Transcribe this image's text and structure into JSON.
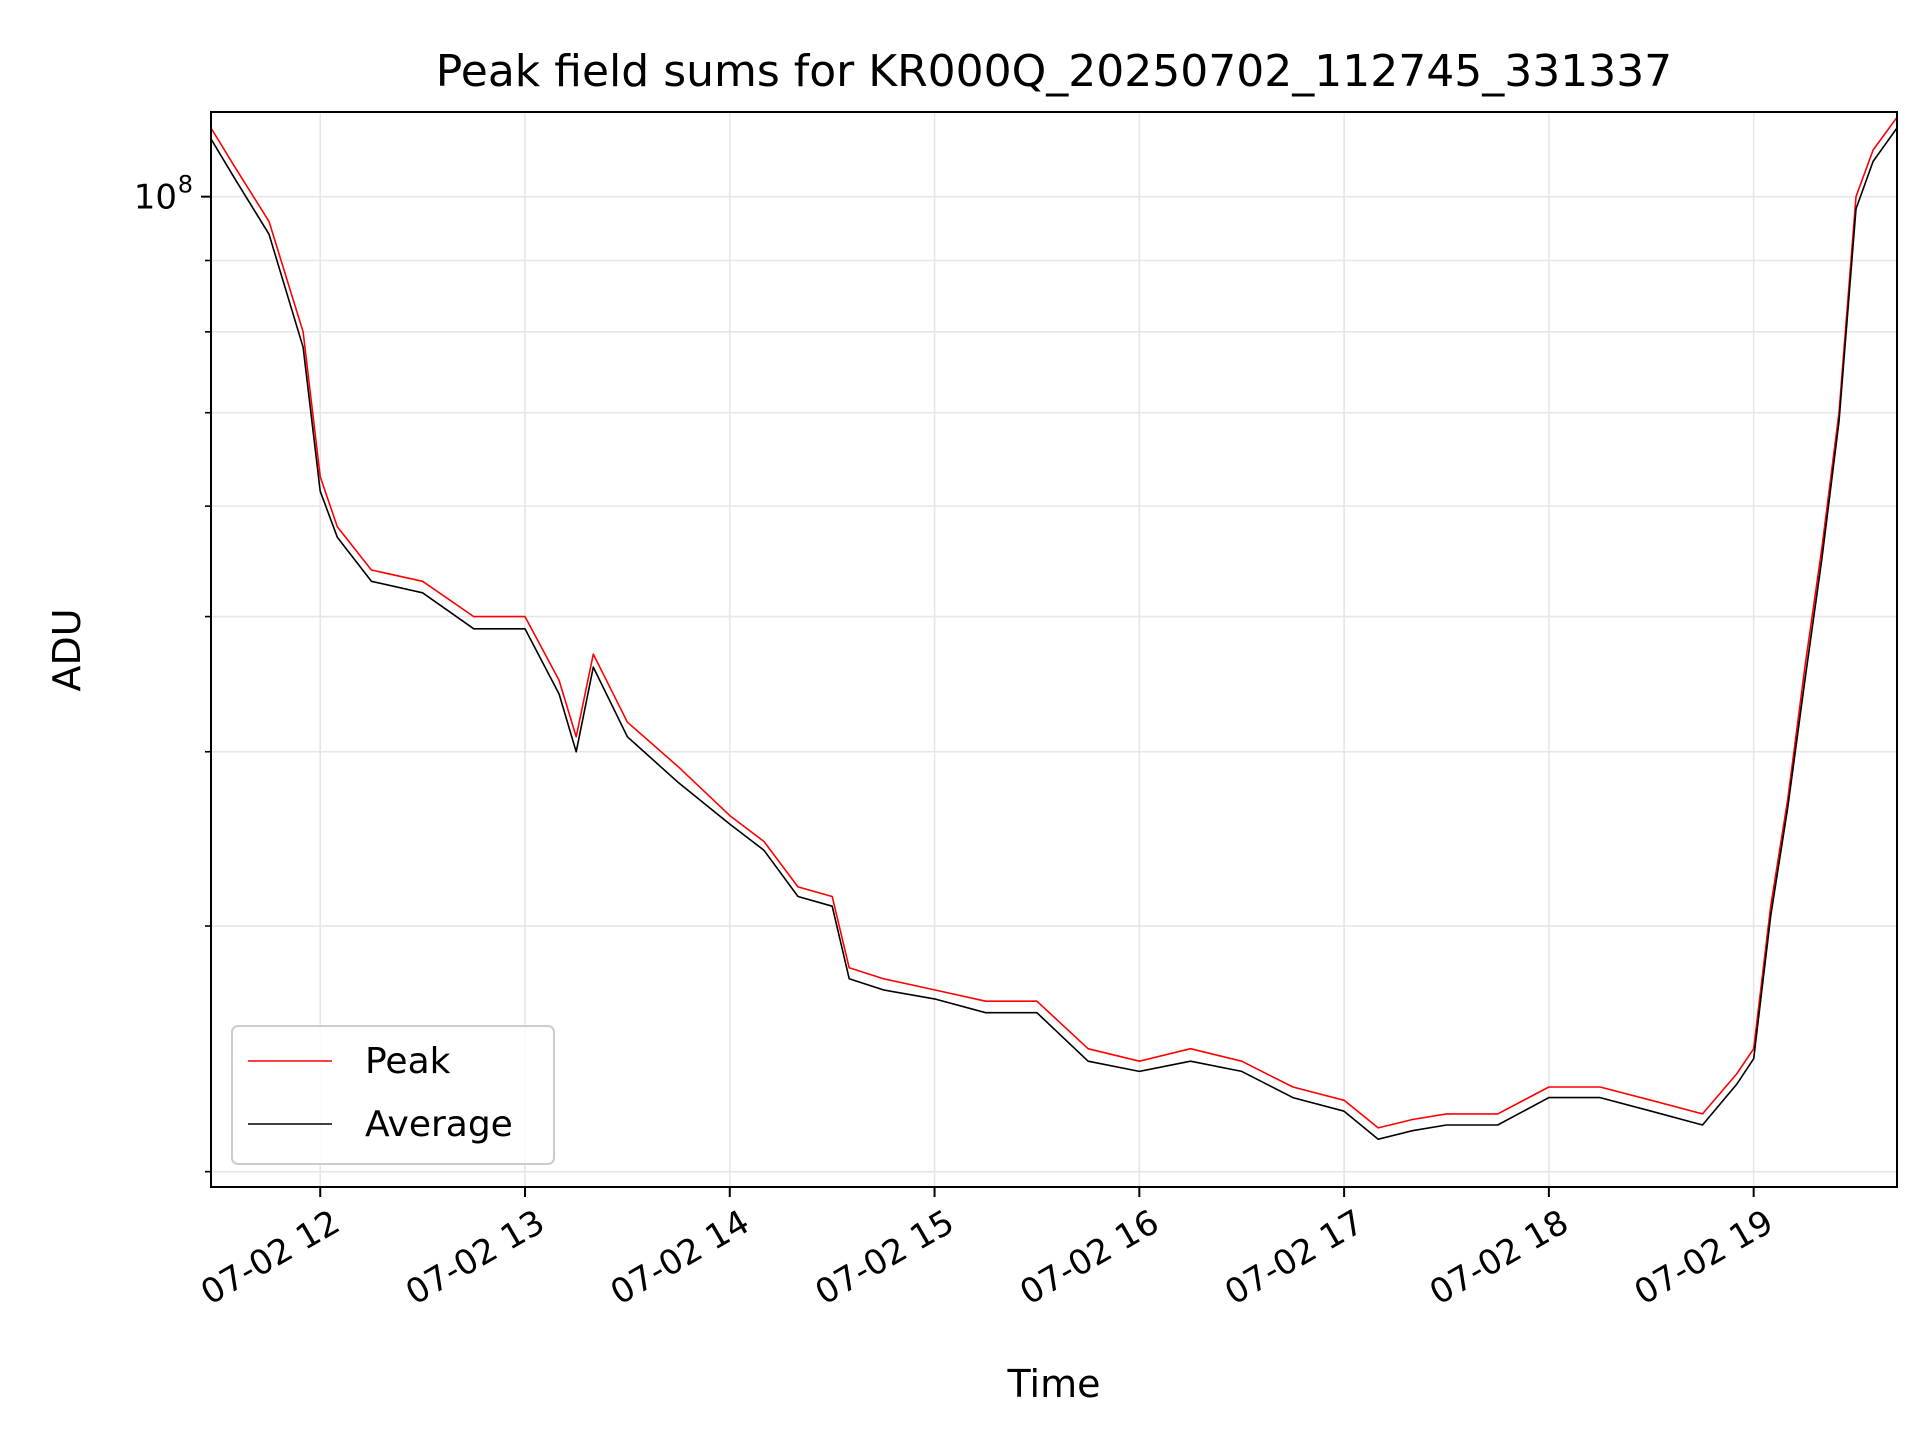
{
  "chart_data": {
    "type": "line",
    "title": "Peak field sums for KR000Q_20250702_112745_331337",
    "xlabel": "Time",
    "ylabel": "ADU",
    "yscale": "log",
    "x_range": [
      "2025-07-02 11:28",
      "2025-07-02 19:42"
    ],
    "ylim": [
      19500000,
      115000000
    ],
    "x_ticks": [
      "07-02 12",
      "07-02 13",
      "07-02 14",
      "07-02 15",
      "07-02 16",
      "07-02 17",
      "07-02 18",
      "07-02 19"
    ],
    "y_ticks": [
      {
        "value": 100000000,
        "label_base": "10",
        "label_exp": "8"
      }
    ],
    "y_minor_ticks": [
      20000000,
      30000000,
      40000000,
      50000000,
      60000000,
      70000000,
      80000000,
      90000000
    ],
    "grid": true,
    "legend_position": "lower-left",
    "colors": {
      "peak": "#ff0000",
      "average": "#000000",
      "grid": "#e6e6e6"
    },
    "series": [
      {
        "name": "Peak",
        "color": "#ff0000",
        "x": [
          "11:28",
          "11:35",
          "11:45",
          "11:55",
          "12:00",
          "12:05",
          "12:15",
          "12:30",
          "12:45",
          "13:00",
          "13:10",
          "13:15",
          "13:20",
          "13:30",
          "13:45",
          "14:00",
          "14:10",
          "14:20",
          "14:30",
          "14:35",
          "14:45",
          "15:00",
          "15:15",
          "15:30",
          "15:45",
          "16:00",
          "16:15",
          "16:30",
          "16:45",
          "17:00",
          "17:10",
          "17:20",
          "17:30",
          "17:45",
          "18:00",
          "18:15",
          "18:30",
          "18:45",
          "18:55",
          "19:00",
          "19:05",
          "19:10",
          "19:15",
          "19:20",
          "19:25",
          "19:30",
          "19:35",
          "19:42"
        ],
        "y": [
          112000000,
          105000000,
          96000000,
          80000000,
          63000000,
          58000000,
          54000000,
          53000000,
          50000000,
          50000000,
          45000000,
          41000000,
          47000000,
          42000000,
          39000000,
          36000000,
          34500000,
          32000000,
          31500000,
          28000000,
          27500000,
          27000000,
          26500000,
          26500000,
          24500000,
          24000000,
          24500000,
          24000000,
          23000000,
          22500000,
          21500000,
          21800000,
          22000000,
          22000000,
          23000000,
          23000000,
          22500000,
          22000000,
          23500000,
          24500000,
          31000000,
          37000000,
          46000000,
          56000000,
          70000000,
          100000000,
          108000000,
          114000000
        ]
      },
      {
        "name": "Average",
        "color": "#000000",
        "x": [
          "11:28",
          "11:35",
          "11:45",
          "11:55",
          "12:00",
          "12:05",
          "12:15",
          "12:30",
          "12:45",
          "13:00",
          "13:10",
          "13:15",
          "13:20",
          "13:30",
          "13:45",
          "14:00",
          "14:10",
          "14:20",
          "14:30",
          "14:35",
          "14:45",
          "15:00",
          "15:15",
          "15:30",
          "15:45",
          "16:00",
          "16:15",
          "16:30",
          "16:45",
          "17:00",
          "17:10",
          "17:20",
          "17:30",
          "17:45",
          "18:00",
          "18:15",
          "18:30",
          "18:45",
          "18:55",
          "19:00",
          "19:05",
          "19:10",
          "19:15",
          "19:20",
          "19:25",
          "19:30",
          "19:35",
          "19:42"
        ],
        "y": [
          110000000,
          103000000,
          94000000,
          78000000,
          61500000,
          57000000,
          53000000,
          52000000,
          49000000,
          49000000,
          44000000,
          40000000,
          46000000,
          41000000,
          38000000,
          35500000,
          34000000,
          31500000,
          31000000,
          27500000,
          27000000,
          26600000,
          26000000,
          26000000,
          24000000,
          23600000,
          24000000,
          23600000,
          22600000,
          22100000,
          21100000,
          21400000,
          21600000,
          21600000,
          22600000,
          22600000,
          22100000,
          21600000,
          23100000,
          24100000,
          30500000,
          36500000,
          45000000,
          55000000,
          69000000,
          98000000,
          106000000,
          112000000
        ]
      }
    ]
  }
}
